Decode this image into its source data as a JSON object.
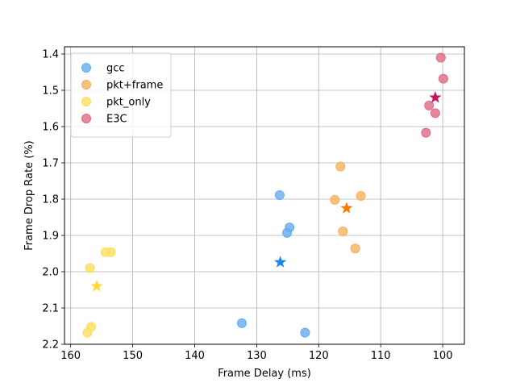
{
  "chart_data": {
    "type": "scatter",
    "title": "",
    "xlabel": "Frame Delay (ms)",
    "ylabel": "Frame Drop Rate (%)",
    "xlim": [
      161,
      96.5
    ],
    "ylim": [
      2.2,
      1.38
    ],
    "x_inverted": true,
    "y_inverted": true,
    "xticks": [
      160,
      150,
      140,
      130,
      120,
      110,
      100
    ],
    "yticks": [
      1.4,
      1.5,
      1.6,
      1.7,
      1.8,
      1.9,
      2.0,
      2.1,
      2.2
    ],
    "ytick_labels": [
      "1.4",
      "1.5",
      "1.6",
      "1.7",
      "1.8",
      "1.9",
      "2.0",
      "2.1",
      "2.2"
    ],
    "grid": true,
    "legend_position": "top-left",
    "series": [
      {
        "name": "gcc",
        "color": "#64acf0",
        "mean_color": "#1e88e5",
        "points": [
          [
            126.3,
            1.789
          ],
          [
            124.7,
            1.878
          ],
          [
            125.1,
            1.893
          ],
          [
            132.4,
            2.142
          ],
          [
            122.2,
            2.168
          ]
        ],
        "mean": [
          126.2,
          1.974
        ]
      },
      {
        "name": "pkt+frame",
        "color": "#f7b05e",
        "mean_color": "#f57c00",
        "points": [
          [
            116.5,
            1.71
          ],
          [
            117.4,
            1.802
          ],
          [
            113.2,
            1.791
          ],
          [
            116.1,
            1.889
          ],
          [
            114.1,
            1.936
          ]
        ],
        "mean": [
          115.5,
          1.825
        ]
      },
      {
        "name": "pkt_only",
        "color": "#fbdf5e",
        "mean_color": "#fdd835",
        "points": [
          [
            154.4,
            1.946
          ],
          [
            153.5,
            1.946
          ],
          [
            156.9,
            1.99
          ],
          [
            156.7,
            2.152
          ],
          [
            157.3,
            2.168
          ]
        ],
        "mean": [
          155.8,
          2.04
        ]
      },
      {
        "name": "E3C",
        "color": "#e06a84",
        "mean_color": "#c2185b",
        "points": [
          [
            100.3,
            1.41
          ],
          [
            99.9,
            1.468
          ],
          [
            102.2,
            1.542
          ],
          [
            101.2,
            1.563
          ],
          [
            102.7,
            1.617
          ]
        ],
        "mean": [
          101.2,
          1.52
        ]
      }
    ]
  }
}
